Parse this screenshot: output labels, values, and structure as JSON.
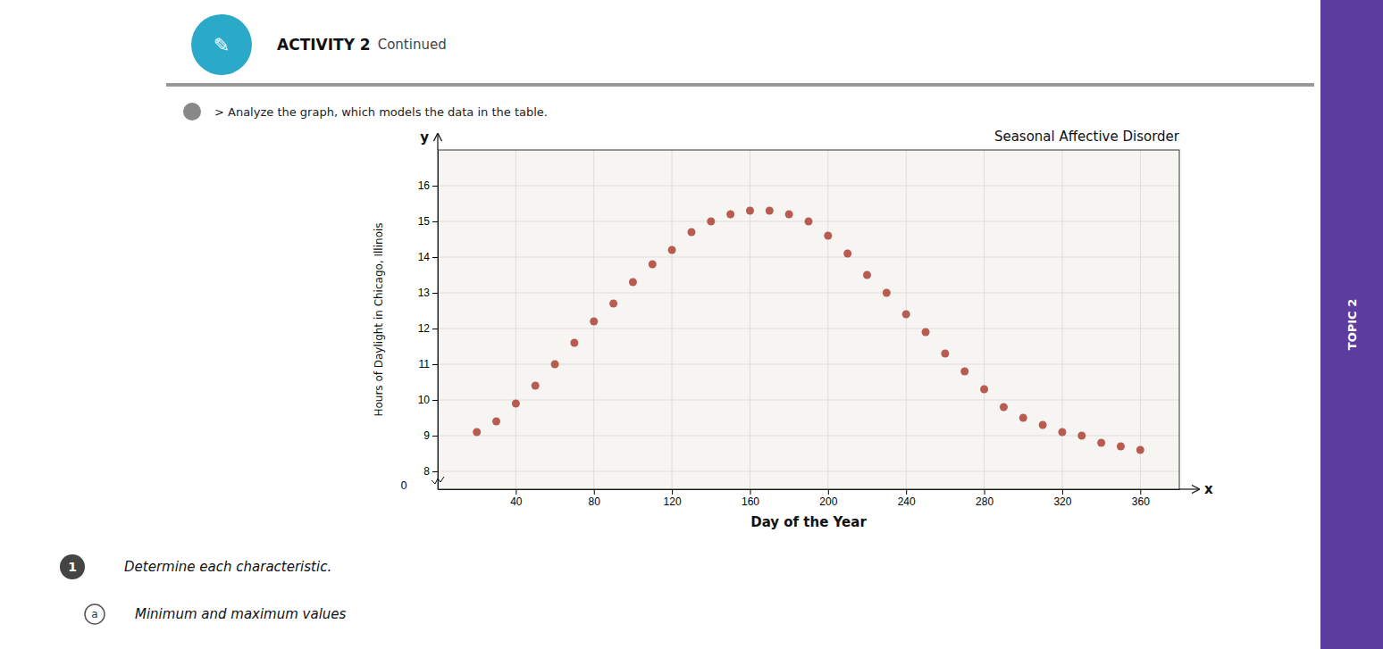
{
  "chart_data": {
    "type": "scatter",
    "title": "Seasonal Affective Disorder",
    "x_label": "Day of the Year",
    "y_label": "Hours of Daylight in Chicago, Illinois",
    "color": "#b85c52",
    "grid": true,
    "xlim": [
      0,
      380
    ],
    "ylim": [
      7.5,
      17
    ],
    "xticks": [
      40,
      80,
      120,
      160,
      200,
      240,
      280,
      320,
      360
    ],
    "yticks": [
      8,
      9,
      10,
      11,
      12,
      13,
      14,
      15,
      16
    ],
    "x": [
      20,
      30,
      40,
      50,
      60,
      70,
      80,
      90,
      100,
      110,
      120,
      130,
      140,
      150,
      160,
      170,
      180,
      190,
      200,
      210,
      220,
      230,
      240,
      250,
      260,
      270,
      280,
      290,
      300,
      310,
      320,
      330,
      340,
      350,
      360
    ],
    "values": [
      9.1,
      9.4,
      9.9,
      10.4,
      11.0,
      11.6,
      12.2,
      12.7,
      13.3,
      13.8,
      14.2,
      14.7,
      15.0,
      15.2,
      15.3,
      15.3,
      15.2,
      15.0,
      14.6,
      14.1,
      13.5,
      13.0,
      12.4,
      11.9,
      11.3,
      10.8,
      10.3,
      9.8,
      9.5,
      9.3,
      9.1,
      9.0,
      8.8,
      8.7,
      8.6
    ],
    "annotations": [
      "TOPIC 2",
      "✎",
      "ACTIVITY 2",
      "Continued",
      "> Analyze the graph, which models the data in the table.",
      "1",
      "Determine each characteristic.",
      "a",
      "Minimum and maximum values",
      "y",
      "x",
      "0"
    ]
  }
}
